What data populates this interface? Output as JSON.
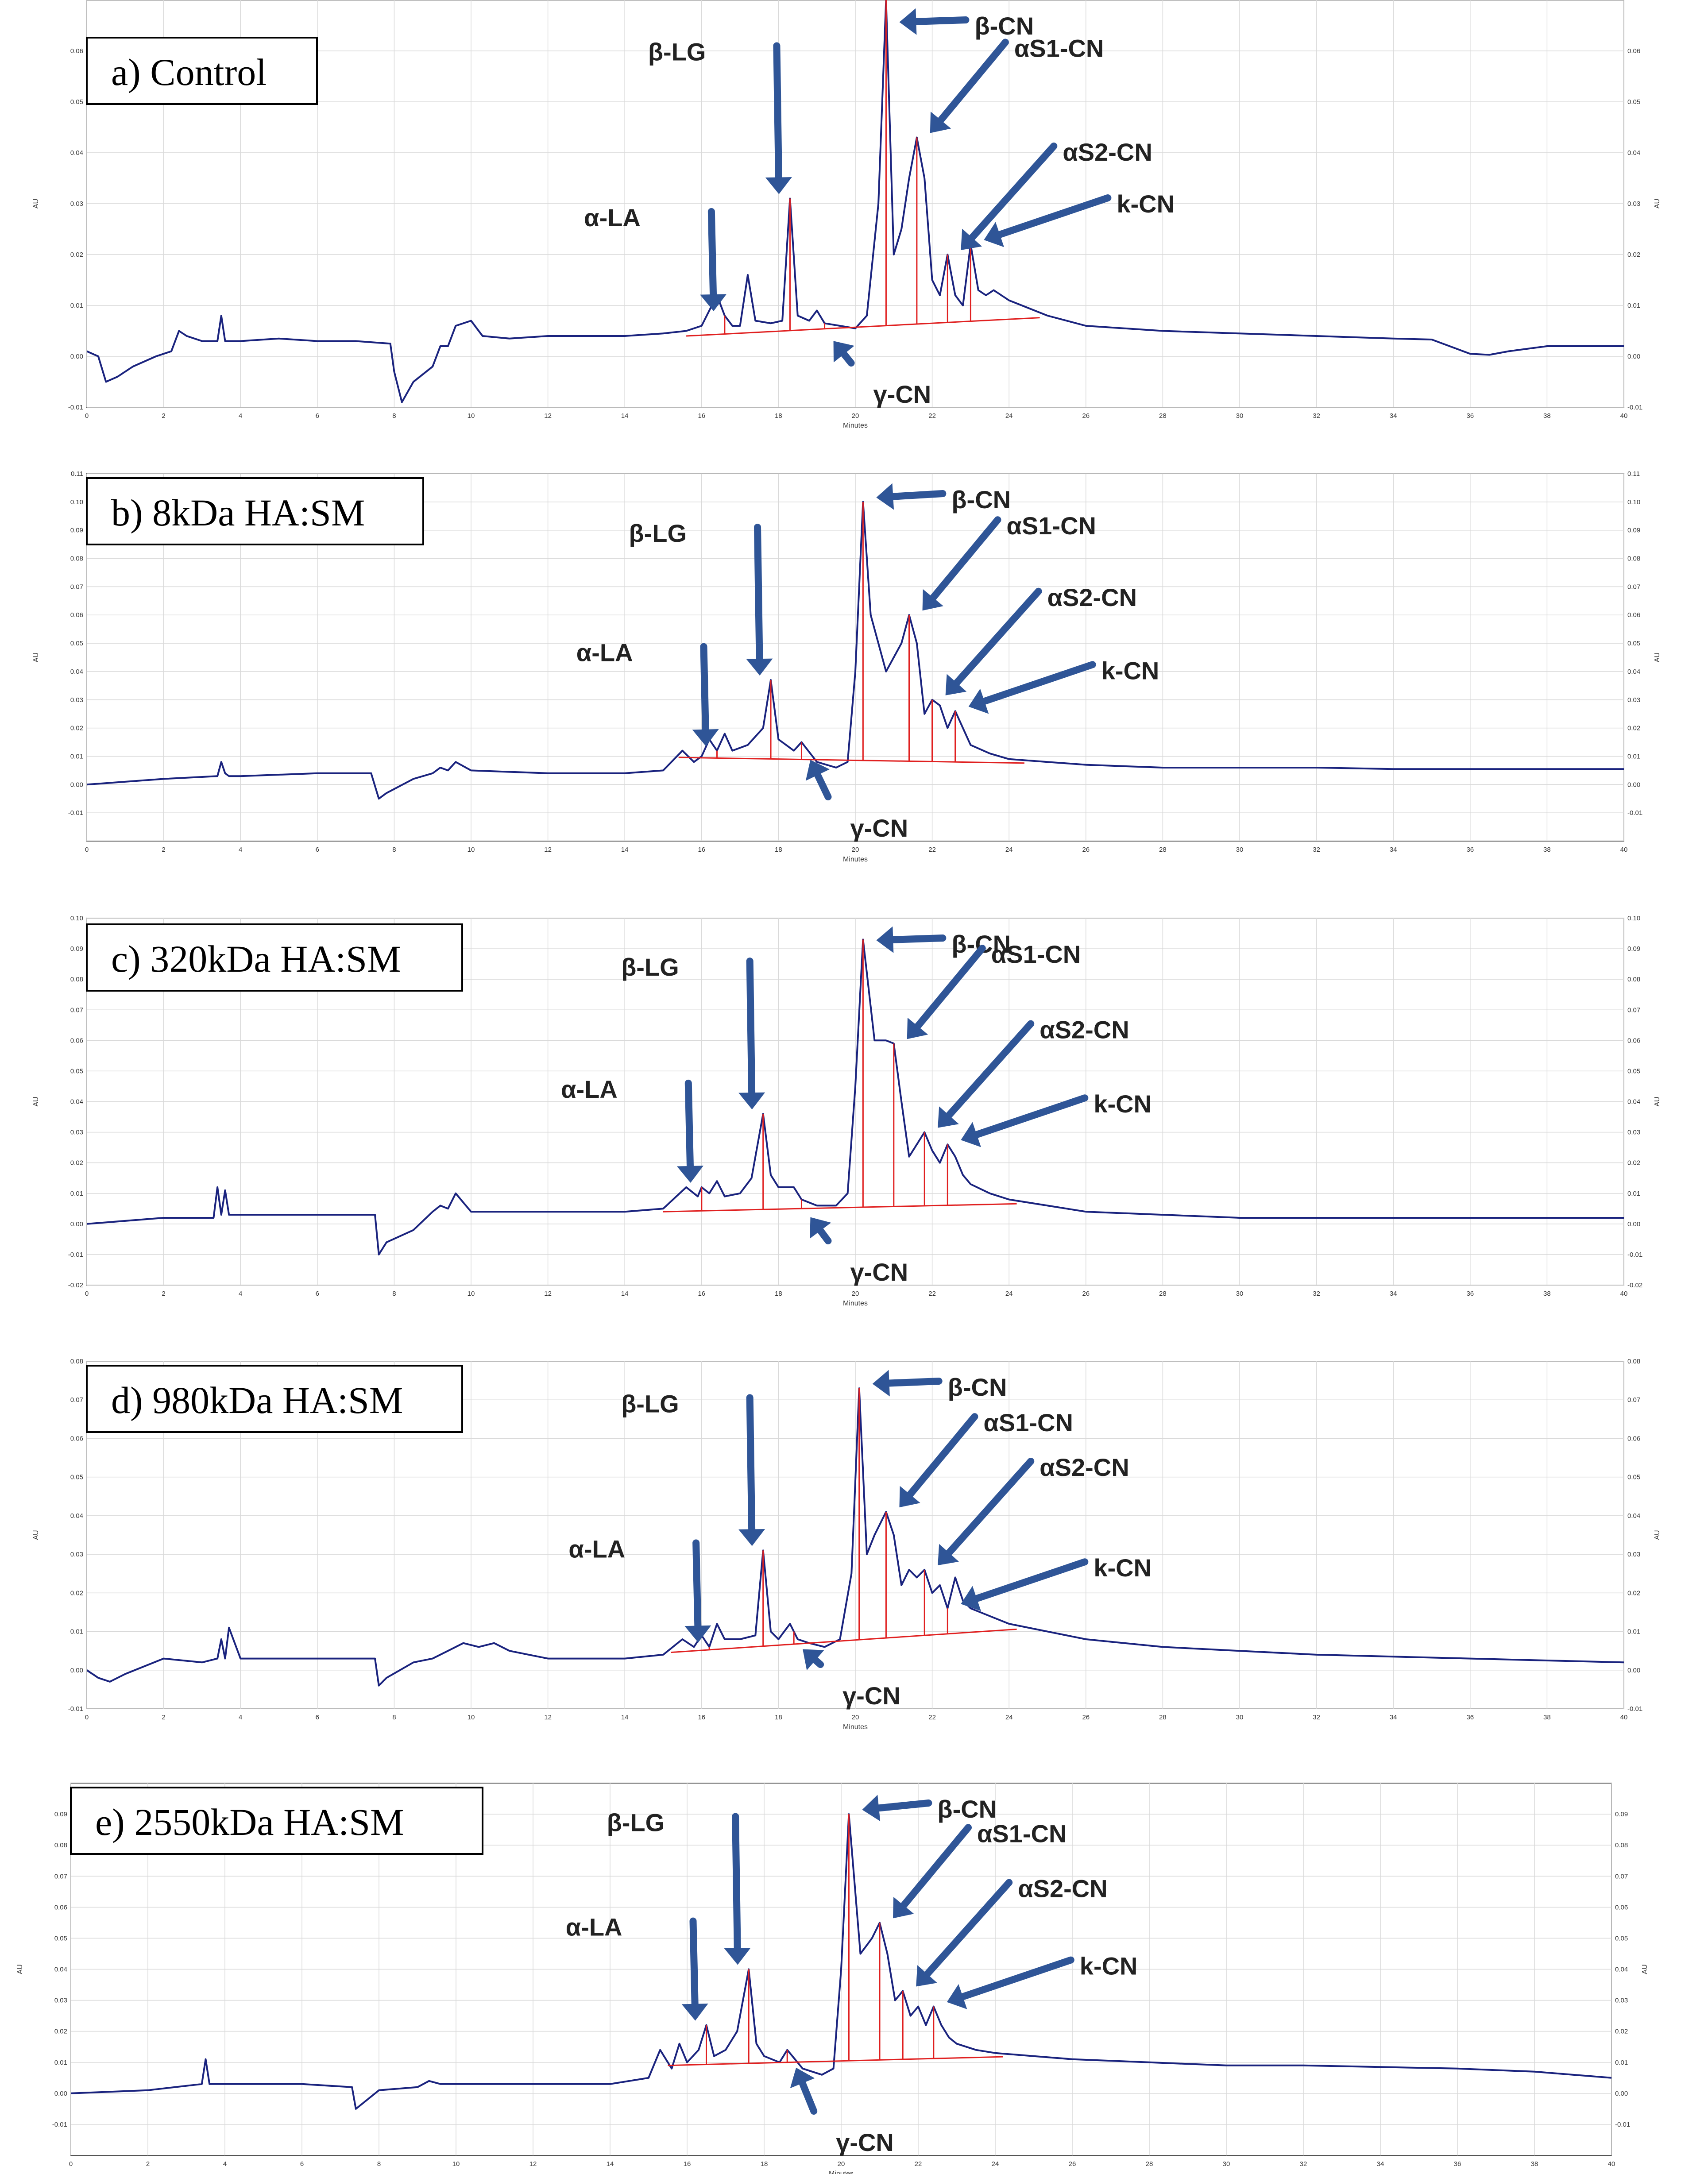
{
  "chart_data": [
    {
      "type": "line",
      "panel_label": "a) Control",
      "xlabel": "Minutes",
      "ylabel": "AU",
      "xlim": [
        0,
        40
      ],
      "ylim": [
        -0.01,
        0.07
      ],
      "x_ticks": [
        "0",
        "2",
        "4",
        "6",
        "8",
        "10",
        "12",
        "14",
        "16",
        "18",
        "20",
        "22",
        "24",
        "26",
        "28",
        "30",
        "32",
        "34",
        "36",
        "38",
        "40"
      ],
      "y_ticks": [
        "-0.01",
        "0.00",
        "0.01",
        "0.02",
        "0.03",
        "0.04",
        "0.05",
        "0.06"
      ],
      "grid": true,
      "series": [
        {
          "color": "#1a237e",
          "x": [
            0,
            0.3,
            0.5,
            0.8,
            1.2,
            1.8,
            2.2,
            2.4,
            2.6,
            3.0,
            3.4,
            3.5,
            3.6,
            3.7,
            4.0,
            5.0,
            6.0,
            7.0,
            7.9,
            8.0,
            8.2,
            8.5,
            9.0,
            9.2,
            9.4,
            9.6,
            10.0,
            10.3,
            11.0,
            12.0,
            13.0,
            14.0,
            15.0,
            15.6,
            16.0,
            16.4,
            16.6,
            16.8,
            17.0,
            17.2,
            17.4,
            17.8,
            18.1,
            18.3,
            18.5,
            18.8,
            19.0,
            19.2,
            19.6,
            20.0,
            20.3,
            20.6,
            20.8,
            21.0,
            21.2,
            21.4,
            21.6,
            21.8,
            22.0,
            22.2,
            22.4,
            22.6,
            22.8,
            23.0,
            23.2,
            23.4,
            23.6,
            24.0,
            25.0,
            26.0,
            28.0,
            30.0,
            32.0,
            34.0,
            35.0,
            36.0,
            36.5,
            37.0,
            38.0,
            40.0
          ],
          "y": [
            0.001,
            0.0,
            -0.005,
            -0.004,
            -0.002,
            0.0,
            0.001,
            0.005,
            0.004,
            0.003,
            0.003,
            0.008,
            0.003,
            0.003,
            0.003,
            0.0035,
            0.003,
            0.003,
            0.0025,
            -0.003,
            -0.009,
            -0.005,
            -0.002,
            0.002,
            0.002,
            0.006,
            0.007,
            0.004,
            0.0035,
            0.004,
            0.004,
            0.004,
            0.0045,
            0.005,
            0.006,
            0.012,
            0.008,
            0.006,
            0.006,
            0.016,
            0.007,
            0.0065,
            0.007,
            0.031,
            0.008,
            0.007,
            0.009,
            0.0065,
            0.006,
            0.0055,
            0.008,
            0.03,
            0.07,
            0.02,
            0.025,
            0.035,
            0.043,
            0.035,
            0.015,
            0.012,
            0.02,
            0.012,
            0.01,
            0.022,
            0.013,
            0.012,
            0.013,
            0.011,
            0.008,
            0.006,
            0.005,
            0.0045,
            0.004,
            0.0035,
            0.0033,
            0.0005,
            0.0003,
            0.001,
            0.002,
            0.002
          ]
        }
      ],
      "peak_labels": [
        {
          "text": "α-LA",
          "x": 16.6
        },
        {
          "text": "β-LG",
          "x": 18.3
        },
        {
          "text": "γ-CN",
          "x": 19.2
        },
        {
          "text": "β-CN",
          "x": 20.8
        },
        {
          "text": "αS1-CN",
          "x": 21.6
        },
        {
          "text": "αS2-CN",
          "x": 22.4
        },
        {
          "text": "k-CN",
          "x": 23.0
        }
      ]
    },
    {
      "type": "line",
      "panel_label": "b) 8kDa HA:SM",
      "xlabel": "Minutes",
      "ylabel": "AU",
      "xlim": [
        0,
        40
      ],
      "ylim": [
        -0.02,
        0.11
      ],
      "x_ticks": [
        "0",
        "2",
        "4",
        "6",
        "8",
        "10",
        "12",
        "14",
        "16",
        "18",
        "20",
        "22",
        "24",
        "26",
        "28",
        "30",
        "32",
        "34",
        "36",
        "38",
        "40"
      ],
      "y_ticks": [
        "-0.01",
        "0.00",
        "0.01",
        "0.02",
        "0.03",
        "0.04",
        "0.05",
        "0.06",
        "0.07",
        "0.08",
        "0.09",
        "0.10",
        "0.11"
      ],
      "grid": true,
      "series": [
        {
          "color": "#1a237e",
          "x": [
            0,
            2.0,
            3.4,
            3.5,
            3.6,
            3.7,
            4.0,
            6.0,
            7.4,
            7.6,
            7.8,
            8.5,
            9.0,
            9.2,
            9.4,
            9.6,
            10.0,
            12.0,
            13.0,
            14.0,
            15.0,
            15.5,
            15.8,
            16.0,
            16.2,
            16.4,
            16.6,
            16.8,
            17.2,
            17.6,
            17.8,
            18.0,
            18.4,
            18.6,
            19.0,
            19.5,
            19.8,
            20.0,
            20.2,
            20.4,
            20.8,
            21.2,
            21.4,
            21.6,
            21.8,
            22.0,
            22.2,
            22.4,
            22.6,
            22.8,
            23.0,
            23.5,
            24.0,
            25.0,
            26.0,
            28.0,
            30.0,
            32.0,
            34.0,
            36.0,
            38.0,
            40.0
          ],
          "y": [
            0.0,
            0.002,
            0.003,
            0.008,
            0.004,
            0.003,
            0.003,
            0.004,
            0.004,
            -0.005,
            -0.003,
            0.002,
            0.004,
            0.006,
            0.005,
            0.008,
            0.005,
            0.004,
            0.004,
            0.004,
            0.005,
            0.012,
            0.008,
            0.01,
            0.016,
            0.012,
            0.018,
            0.012,
            0.014,
            0.02,
            0.037,
            0.016,
            0.012,
            0.015,
            0.008,
            0.006,
            0.008,
            0.04,
            0.1,
            0.06,
            0.04,
            0.05,
            0.06,
            0.05,
            0.025,
            0.03,
            0.028,
            0.02,
            0.026,
            0.02,
            0.014,
            0.011,
            0.009,
            0.008,
            0.007,
            0.006,
            0.006,
            0.006,
            0.0055,
            0.0055,
            0.0055,
            0.0055
          ]
        }
      ],
      "peak_labels": [
        {
          "text": "α-LA",
          "x": 16.4
        },
        {
          "text": "β-LG",
          "x": 17.8
        },
        {
          "text": "γ-CN",
          "x": 18.6
        },
        {
          "text": "β-CN",
          "x": 20.2
        },
        {
          "text": "αS1-CN",
          "x": 21.4
        },
        {
          "text": "αS2-CN",
          "x": 22.0
        },
        {
          "text": "k-CN",
          "x": 22.6
        }
      ]
    },
    {
      "type": "line",
      "panel_label": "c) 320kDa HA:SM",
      "xlabel": "Minutes",
      "ylabel": "AU",
      "xlim": [
        0,
        40
      ],
      "ylim": [
        -0.02,
        0.1
      ],
      "x_ticks": [
        "0",
        "2",
        "4",
        "6",
        "8",
        "10",
        "12",
        "14",
        "16",
        "18",
        "20",
        "22",
        "24",
        "26",
        "28",
        "30",
        "32",
        "34",
        "36",
        "38",
        "40"
      ],
      "y_ticks": [
        "-0.02",
        "-0.01",
        "0.00",
        "0.01",
        "0.02",
        "0.03",
        "0.04",
        "0.05",
        "0.06",
        "0.07",
        "0.08",
        "0.09",
        "0.10"
      ],
      "grid": true,
      "series": [
        {
          "color": "#1a237e",
          "x": [
            0,
            2.0,
            3.3,
            3.4,
            3.5,
            3.6,
            3.7,
            3.8,
            4.0,
            6.0,
            7.5,
            7.6,
            7.8,
            8.5,
            9.0,
            9.2,
            9.4,
            9.6,
            10.0,
            12.0,
            14.0,
            15.0,
            15.6,
            15.9,
            16.0,
            16.2,
            16.4,
            16.6,
            17.0,
            17.3,
            17.6,
            17.8,
            18.0,
            18.4,
            18.6,
            19.0,
            19.5,
            19.8,
            20.0,
            20.2,
            20.5,
            20.8,
            21.0,
            21.2,
            21.4,
            21.6,
            21.8,
            22.0,
            22.2,
            22.4,
            22.6,
            22.8,
            23.0,
            23.5,
            24.0,
            25.0,
            26.0,
            28.0,
            30.0,
            32.0,
            34.0,
            36.0,
            38.0,
            40.0
          ],
          "y": [
            0.0,
            0.002,
            0.002,
            0.012,
            0.003,
            0.011,
            0.003,
            0.003,
            0.003,
            0.003,
            0.003,
            -0.01,
            -0.006,
            -0.002,
            0.004,
            0.006,
            0.005,
            0.01,
            0.004,
            0.004,
            0.004,
            0.005,
            0.012,
            0.009,
            0.012,
            0.01,
            0.014,
            0.009,
            0.01,
            0.015,
            0.036,
            0.016,
            0.012,
            0.012,
            0.008,
            0.006,
            0.006,
            0.01,
            0.045,
            0.093,
            0.06,
            0.06,
            0.059,
            0.04,
            0.022,
            0.026,
            0.03,
            0.024,
            0.02,
            0.026,
            0.022,
            0.016,
            0.013,
            0.01,
            0.008,
            0.006,
            0.004,
            0.003,
            0.002,
            0.002,
            0.002,
            0.002,
            0.002,
            0.002
          ]
        }
      ],
      "peak_labels": [
        {
          "text": "α-LA",
          "x": 16.0
        },
        {
          "text": "β-LG",
          "x": 17.6
        },
        {
          "text": "γ-CN",
          "x": 18.6
        },
        {
          "text": "β-CN",
          "x": 20.2
        },
        {
          "text": "αS1-CN",
          "x": 21.0
        },
        {
          "text": "αS2-CN",
          "x": 21.8
        },
        {
          "text": "k-CN",
          "x": 22.4
        }
      ]
    },
    {
      "type": "line",
      "panel_label": "d) 980kDa HA:SM",
      "xlabel": "Minutes",
      "ylabel": "AU",
      "xlim": [
        0,
        40
      ],
      "ylim": [
        -0.01,
        0.08
      ],
      "x_ticks": [
        "0",
        "2",
        "4",
        "6",
        "8",
        "10",
        "12",
        "14",
        "16",
        "18",
        "20",
        "22",
        "24",
        "26",
        "28",
        "30",
        "32",
        "34",
        "36",
        "38",
        "40"
      ],
      "y_ticks": [
        "-0.01",
        "0.00",
        "0.01",
        "0.02",
        "0.03",
        "0.04",
        "0.05",
        "0.06",
        "0.07",
        "0.08"
      ],
      "grid": true,
      "series": [
        {
          "color": "#1a237e",
          "x": [
            0,
            0.3,
            0.6,
            1.0,
            2.0,
            3.0,
            3.4,
            3.5,
            3.6,
            3.7,
            4.0,
            6.0,
            7.5,
            7.6,
            7.8,
            8.5,
            9.0,
            9.4,
            9.8,
            10.2,
            10.6,
            11.0,
            11.5,
            12.0,
            13.0,
            14.0,
            15.0,
            15.5,
            15.8,
            16.0,
            16.2,
            16.4,
            16.6,
            17.0,
            17.4,
            17.6,
            17.8,
            18.0,
            18.3,
            18.5,
            18.8,
            19.2,
            19.6,
            19.9,
            20.1,
            20.3,
            20.5,
            20.8,
            21.0,
            21.2,
            21.4,
            21.6,
            21.8,
            22.0,
            22.2,
            22.4,
            22.6,
            22.8,
            23.0,
            23.5,
            24.0,
            25.0,
            26.0,
            28.0,
            30.0,
            32.0,
            34.0,
            36.0,
            38.0,
            40.0
          ],
          "y": [
            0.0,
            -0.002,
            -0.003,
            -0.001,
            0.003,
            0.002,
            0.003,
            0.008,
            0.003,
            0.011,
            0.003,
            0.003,
            0.003,
            -0.004,
            -0.002,
            0.002,
            0.003,
            0.005,
            0.007,
            0.006,
            0.007,
            0.005,
            0.004,
            0.003,
            0.003,
            0.003,
            0.004,
            0.008,
            0.006,
            0.009,
            0.006,
            0.012,
            0.008,
            0.008,
            0.009,
            0.031,
            0.01,
            0.008,
            0.012,
            0.008,
            0.007,
            0.006,
            0.008,
            0.025,
            0.073,
            0.03,
            0.035,
            0.041,
            0.035,
            0.022,
            0.026,
            0.024,
            0.026,
            0.02,
            0.022,
            0.016,
            0.024,
            0.018,
            0.016,
            0.014,
            0.012,
            0.01,
            0.008,
            0.006,
            0.005,
            0.004,
            0.0035,
            0.003,
            0.0025,
            0.002
          ]
        }
      ],
      "peak_labels": [
        {
          "text": "α-LA",
          "x": 16.2
        },
        {
          "text": "β-LG",
          "x": 17.6
        },
        {
          "text": "γ-CN",
          "x": 18.4
        },
        {
          "text": "β-CN",
          "x": 20.1
        },
        {
          "text": "αS1-CN",
          "x": 20.8
        },
        {
          "text": "αS2-CN",
          "x": 21.8
        },
        {
          "text": "k-CN",
          "x": 22.4
        }
      ]
    },
    {
      "type": "line",
      "panel_label": "e) 2550kDa HA:SM",
      "xlabel": "Minutes",
      "ylabel": "AU",
      "xlim": [
        0,
        40
      ],
      "ylim": [
        -0.02,
        0.1
      ],
      "x_ticks": [
        "0",
        "2",
        "4",
        "6",
        "8",
        "10",
        "12",
        "14",
        "16",
        "18",
        "20",
        "22",
        "24",
        "26",
        "28",
        "30",
        "32",
        "34",
        "36",
        "38",
        "40"
      ],
      "y_ticks": [
        "-0.01",
        "0.00",
        "0.01",
        "0.02",
        "0.03",
        "0.04",
        "0.05",
        "0.06",
        "0.07",
        "0.08",
        "0.09"
      ],
      "grid": true,
      "series": [
        {
          "color": "#1a237e",
          "x": [
            0,
            2.0,
            3.4,
            3.5,
            3.6,
            3.7,
            4.0,
            6.0,
            7.3,
            7.4,
            7.6,
            8.0,
            9.0,
            9.3,
            9.6,
            10.0,
            12.0,
            14.0,
            15.0,
            15.3,
            15.6,
            15.8,
            16.0,
            16.3,
            16.5,
            16.7,
            17.0,
            17.3,
            17.6,
            17.8,
            18.0,
            18.4,
            18.6,
            19.0,
            19.5,
            19.8,
            20.0,
            20.2,
            20.5,
            20.8,
            21.0,
            21.2,
            21.4,
            21.6,
            21.8,
            22.0,
            22.2,
            22.4,
            22.6,
            22.8,
            23.0,
            23.5,
            24.0,
            25.0,
            26.0,
            28.0,
            30.0,
            32.0,
            34.0,
            36.0,
            38.0,
            40.0
          ],
          "y": [
            0.0,
            0.001,
            0.003,
            0.011,
            0.003,
            0.003,
            0.003,
            0.003,
            0.002,
            -0.005,
            -0.003,
            0.001,
            0.002,
            0.004,
            0.003,
            0.003,
            0.003,
            0.003,
            0.005,
            0.014,
            0.008,
            0.016,
            0.01,
            0.014,
            0.022,
            0.012,
            0.014,
            0.02,
            0.04,
            0.016,
            0.012,
            0.01,
            0.014,
            0.008,
            0.006,
            0.008,
            0.04,
            0.09,
            0.045,
            0.05,
            0.055,
            0.045,
            0.03,
            0.033,
            0.025,
            0.028,
            0.022,
            0.028,
            0.022,
            0.018,
            0.016,
            0.014,
            0.013,
            0.012,
            0.011,
            0.01,
            0.009,
            0.009,
            0.0085,
            0.008,
            0.007,
            0.005
          ]
        }
      ],
      "peak_labels": [
        {
          "text": "α-LA",
          "x": 16.5
        },
        {
          "text": "β-LG",
          "x": 17.6
        },
        {
          "text": "γ-CN",
          "x": 18.6
        },
        {
          "text": "β-CN",
          "x": 20.2
        },
        {
          "text": "αS1-CN",
          "x": 21.0
        },
        {
          "text": "αS2-CN",
          "x": 21.6
        },
        {
          "text": "k-CN",
          "x": 22.4
        }
      ]
    }
  ]
}
